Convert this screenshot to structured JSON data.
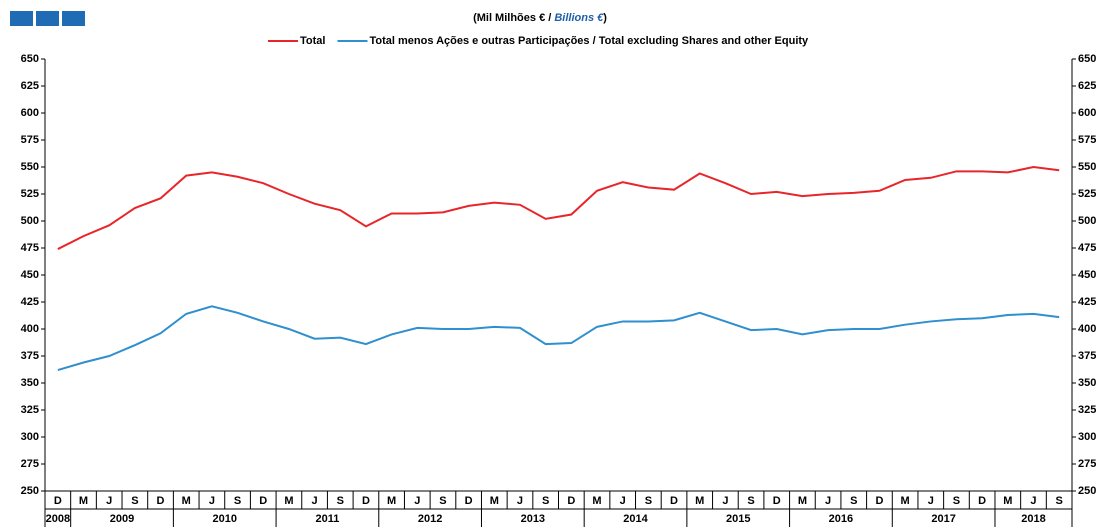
{
  "chart_data": {
    "type": "line",
    "title_parts": [
      "(Mil Milhões € / ",
      "Billions €",
      ")"
    ],
    "categories": [
      "D",
      "M",
      "J",
      "S",
      "D",
      "M",
      "J",
      "S",
      "D",
      "M",
      "J",
      "S",
      "D",
      "M",
      "J",
      "S",
      "D",
      "M",
      "J",
      "S",
      "D",
      "M",
      "J",
      "S",
      "D",
      "M",
      "J",
      "S",
      "D",
      "M",
      "J",
      "S",
      "D",
      "M",
      "J",
      "S",
      "D",
      "M",
      "J",
      "S"
    ],
    "years": [
      "2008",
      "2009",
      "2010",
      "2011",
      "2012",
      "2013",
      "2014",
      "2015",
      "2016",
      "2017",
      "2018"
    ],
    "series": [
      {
        "name": "Total",
        "color": "#e8262a",
        "values": [
          474,
          486,
          496,
          512,
          521,
          542,
          545,
          541,
          535,
          525,
          516,
          510,
          495,
          507,
          507,
          508,
          514,
          517,
          515,
          502,
          506,
          528,
          536,
          531,
          529,
          544,
          535,
          525,
          527,
          523,
          525,
          526,
          528,
          538,
          540,
          546,
          546,
          545,
          550,
          547
        ]
      },
      {
        "name": "Total menos Ações e outras Participações / Total excluding Shares and other Equity",
        "color": "#2f8fcf",
        "values": [
          362,
          369,
          375,
          385,
          396,
          414,
          421,
          415,
          407,
          400,
          391,
          392,
          386,
          395,
          401,
          400,
          400,
          402,
          401,
          386,
          387,
          402,
          407,
          407,
          408,
          415,
          407,
          399,
          400,
          395,
          399,
          400,
          400,
          404,
          407,
          409,
          410,
          413,
          414,
          411
        ]
      }
    ],
    "ylim": [
      250,
      650
    ],
    "yticks": [
      250,
      275,
      300,
      325,
      350,
      375,
      400,
      425,
      450,
      475,
      500,
      525,
      550,
      575,
      600,
      625,
      650
    ]
  }
}
